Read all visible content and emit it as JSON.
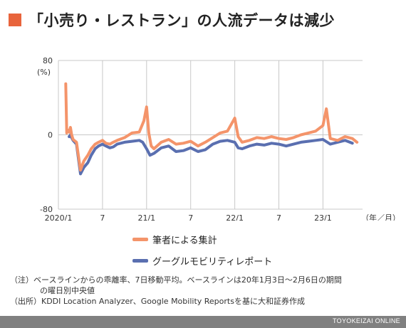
{
  "title": "「小売り・レストラン」の人流データは減少",
  "colors": {
    "accent": "#e8643c",
    "series_author": "#f4946a",
    "series_google": "#5a6fb0",
    "grid": "#c8c8c8",
    "footer_bg": "#808080"
  },
  "chart_data": {
    "type": "line",
    "yunit": "(%)",
    "ylim": [
      -80,
      80
    ],
    "yticks": [
      "80",
      "0",
      "-80"
    ],
    "xlabel": "（年／月）",
    "xtick_labels": [
      "2020/1",
      "7",
      "21/1",
      "7",
      "22/1",
      "7",
      "23/1"
    ],
    "x_range": [
      "2020-01",
      "2023-06"
    ],
    "series": [
      {
        "name": "グーグルモビリティレポート",
        "color": "#5a6fb0",
        "x": [
          "2020-02-15",
          "2020-02-20",
          "2020-02-25",
          "2020-03-01",
          "2020-03-15",
          "2020-04-01",
          "2020-04-15",
          "2020-05-01",
          "2020-05-15",
          "2020-06-01",
          "2020-06-15",
          "2020-07-01",
          "2020-07-15",
          "2020-08-01",
          "2020-08-15",
          "2020-09-01",
          "2020-10-01",
          "2020-11-01",
          "2020-12-01",
          "2020-12-15",
          "2021-01-01",
          "2021-01-15",
          "2021-02-01",
          "2021-03-01",
          "2021-04-01",
          "2021-05-01",
          "2021-06-01",
          "2021-07-01",
          "2021-08-01",
          "2021-09-01",
          "2021-10-01",
          "2021-11-01",
          "2021-12-01",
          "2022-01-01",
          "2022-01-15",
          "2022-02-01",
          "2022-03-01",
          "2022-04-01",
          "2022-05-01",
          "2022-06-01",
          "2022-07-01",
          "2022-08-01",
          "2022-09-01",
          "2022-10-01",
          "2022-11-01",
          "2022-12-01",
          "2023-01-01",
          "2023-02-01",
          "2023-03-01",
          "2023-04-01",
          "2023-05-01"
        ],
        "values": [
          -2,
          0,
          -3,
          -6,
          -10,
          -42,
          -35,
          -30,
          -22,
          -15,
          -12,
          -10,
          -12,
          -14,
          -13,
          -10,
          -8,
          -7,
          -6,
          -8,
          -15,
          -22,
          -20,
          -14,
          -12,
          -18,
          -17,
          -14,
          -18,
          -16,
          -10,
          -7,
          -6,
          -8,
          -14,
          -15,
          -12,
          -10,
          -11,
          -9,
          -10,
          -12,
          -10,
          -8,
          -7,
          -6,
          -5,
          -10,
          -8,
          -6,
          -9
        ]
      },
      {
        "name": "筆者による集計",
        "color": "#f4946a",
        "x": [
          "2020-02-01",
          "2020-02-05",
          "2020-02-10",
          "2020-02-15",
          "2020-02-20",
          "2020-02-25",
          "2020-03-01",
          "2020-03-15",
          "2020-04-01",
          "2020-04-15",
          "2020-05-01",
          "2020-05-15",
          "2020-06-01",
          "2020-06-15",
          "2020-07-01",
          "2020-07-15",
          "2020-08-01",
          "2020-08-15",
          "2020-09-01",
          "2020-10-01",
          "2020-11-01",
          "2020-12-01",
          "2020-12-20",
          "2020-12-31",
          "2021-01-10",
          "2021-01-20",
          "2021-02-01",
          "2021-03-01",
          "2021-04-01",
          "2021-05-01",
          "2021-06-01",
          "2021-07-01",
          "2021-08-01",
          "2021-09-01",
          "2021-10-01",
          "2021-11-01",
          "2021-12-01",
          "2021-12-31",
          "2022-01-15",
          "2022-02-01",
          "2022-03-01",
          "2022-04-01",
          "2022-05-01",
          "2022-06-01",
          "2022-07-01",
          "2022-08-01",
          "2022-09-01",
          "2022-10-01",
          "2022-11-01",
          "2022-12-01",
          "2022-12-31",
          "2023-01-15",
          "2023-02-01",
          "2023-03-01",
          "2023-04-01",
          "2023-05-01",
          "2023-05-20"
        ],
        "values": [
          55,
          2,
          5,
          3,
          8,
          0,
          -5,
          -8,
          -38,
          -28,
          -22,
          -15,
          -10,
          -8,
          -6,
          -9,
          -10,
          -8,
          -6,
          -3,
          2,
          3,
          15,
          30,
          2,
          -12,
          -15,
          -8,
          -5,
          -10,
          -9,
          -7,
          -12,
          -8,
          -3,
          2,
          4,
          18,
          -2,
          -8,
          -6,
          -3,
          -4,
          -2,
          -4,
          -5,
          -3,
          0,
          2,
          4,
          10,
          28,
          -4,
          -6,
          -2,
          -4,
          -8
        ]
      }
    ]
  },
  "legend": [
    {
      "label": "筆者による集計",
      "color": "#f4946a"
    },
    {
      "label": "グーグルモビリティレポート",
      "color": "#5a6fb0"
    }
  ],
  "notes": {
    "line1": "（注）ベースラインからの乖離率、7日移動平均。ベースラインは20年1月3日〜2月6日の期間",
    "line2": "の曜日別中央値",
    "line3": "（出所）KDDI Location Analyzer、Google Mobility Reportsを基に大和証券作成"
  },
  "footer_brand": "TOYOKEIZAI ONLINE"
}
